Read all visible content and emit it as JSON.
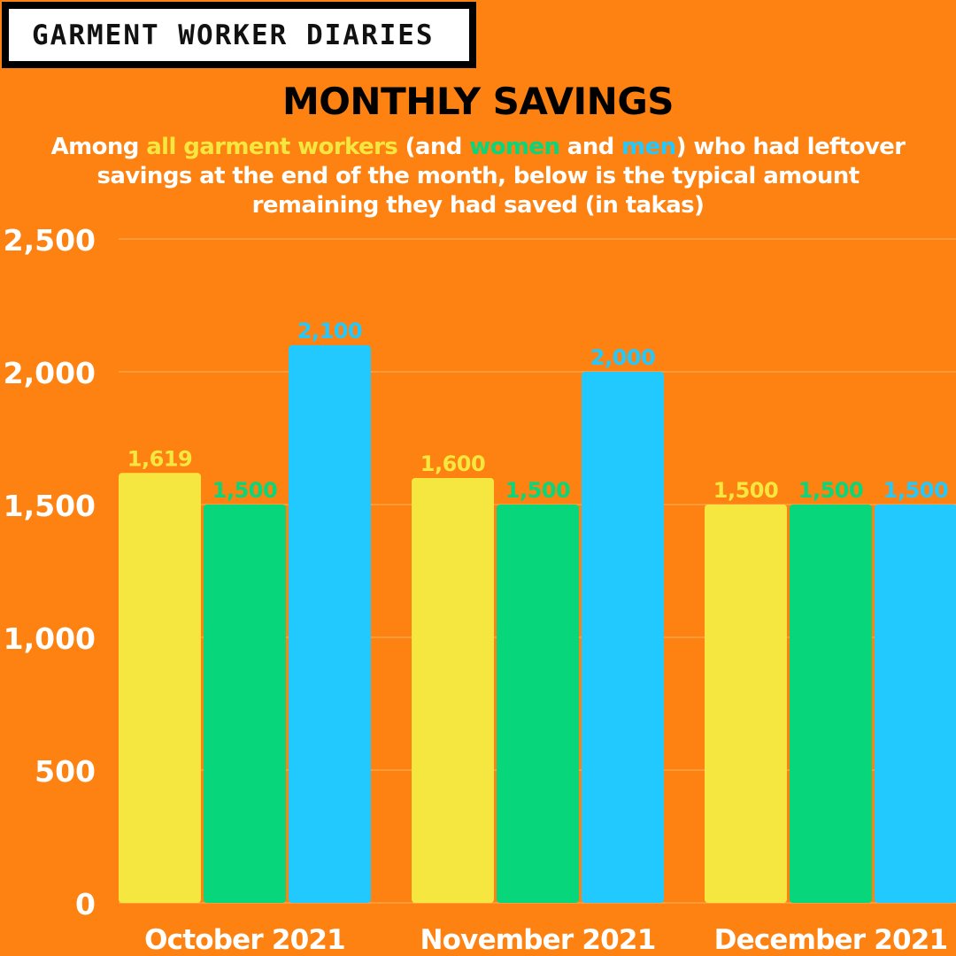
{
  "brand": {
    "label": "GARMENT WORKER DIARIES"
  },
  "colors": {
    "background": "#FD8211",
    "all_workers": "#F5E73F",
    "women": "#07D67A",
    "men": "#21C9FF",
    "text": "#FFFFFF",
    "title": "#000000"
  },
  "title": "MONTHLY SAVINGS",
  "subtitle": {
    "p1": "Among ",
    "all": "all garment workers",
    "p2": " (and ",
    "women": "women",
    "p3": " and ",
    "men": "men",
    "p4": ") who had leftover",
    "line2": "savings at the end of the month, below is the typical amount",
    "line3": "remaining they had saved (in takas)"
  },
  "chart_data": {
    "type": "bar",
    "categories": [
      "October 2021",
      "November 2021",
      "December 2021"
    ],
    "series": [
      {
        "key": "all",
        "values": [
          1619,
          1600,
          1500
        ],
        "labels": [
          "1,619",
          "1,600",
          "1,500"
        ]
      },
      {
        "key": "women",
        "values": [
          1500,
          1500,
          1500
        ],
        "labels": [
          "1,500",
          "1,500",
          "1,500"
        ]
      },
      {
        "key": "men",
        "values": [
          2100,
          2000,
          1500
        ],
        "labels": [
          "2,100",
          "2,000",
          "1,500"
        ]
      }
    ],
    "ylim": [
      0,
      2500
    ],
    "yticks": [
      0,
      500,
      1000,
      1500,
      2000,
      2500
    ],
    "ytick_labels": [
      "0",
      "500",
      "1,000",
      "1,500",
      "2,000",
      "2,500"
    ],
    "grid": true
  }
}
